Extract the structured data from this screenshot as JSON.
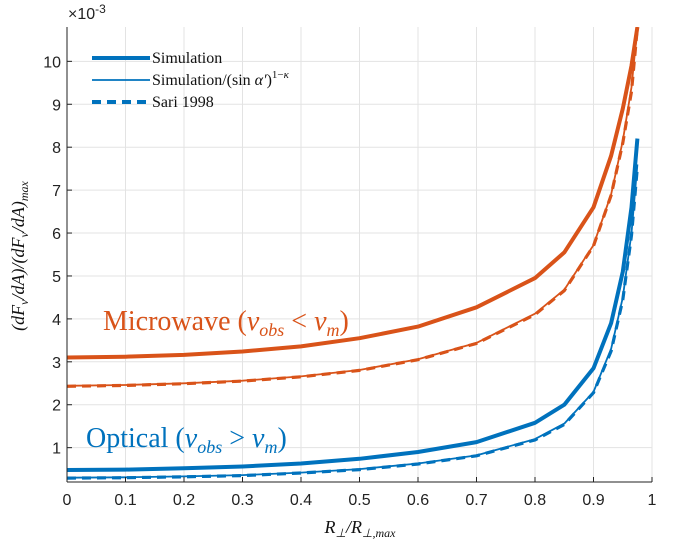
{
  "chart_data": {
    "type": "line",
    "title": "",
    "xlabel": "R⊥/R⊥,max",
    "ylabel": "(dFν/dA)/(dFν/dA)max",
    "y_multiplier": "×10-3",
    "xlim": [
      0,
      1
    ],
    "ylim": [
      0.2,
      10.8
    ],
    "xticks": [
      "0",
      "0.1",
      "0.2",
      "0.3",
      "0.4",
      "0.5",
      "0.6",
      "0.7",
      "0.8",
      "0.9",
      "1"
    ],
    "yticks": [
      "1",
      "2",
      "3",
      "4",
      "5",
      "6",
      "7",
      "8",
      "9",
      "10"
    ],
    "grid": true,
    "legend_position": "top-left",
    "legend": [
      {
        "label": "Simulation",
        "style": "thick-solid"
      },
      {
        "label": "Simulation/(sin α′)1−κ",
        "style": "thin-solid"
      },
      {
        "label": "Sari 1998",
        "style": "dashed"
      }
    ],
    "annotations": [
      {
        "text": "Microwave (νobs < νm)",
        "color": "#d95319"
      },
      {
        "text": "Optical (νobs > νm)",
        "color": "#0072bd"
      }
    ],
    "x": [
      0,
      0.1,
      0.2,
      0.3,
      0.4,
      0.5,
      0.6,
      0.7,
      0.8,
      0.85,
      0.9,
      0.93,
      0.95,
      0.965,
      0.975
    ],
    "series": [
      {
        "group": "Microwave",
        "style": "thick-solid",
        "color": "#d95319",
        "values": [
          3.1,
          3.12,
          3.16,
          3.24,
          3.36,
          3.55,
          3.82,
          4.27,
          4.95,
          5.55,
          6.6,
          7.8,
          8.9,
          9.9,
          10.8
        ]
      },
      {
        "group": "Microwave",
        "style": "thin-solid",
        "color": "#d95319",
        "values": [
          2.44,
          2.46,
          2.5,
          2.56,
          2.66,
          2.81,
          3.06,
          3.44,
          4.12,
          4.68,
          5.72,
          6.9,
          8.15,
          9.4,
          10.8
        ]
      },
      {
        "group": "Microwave",
        "style": "dashed",
        "color": "#d95319",
        "values": [
          2.43,
          2.45,
          2.49,
          2.55,
          2.65,
          2.8,
          3.05,
          3.43,
          4.1,
          4.66,
          5.7,
          6.88,
          8.1,
          9.3,
          10.8
        ]
      },
      {
        "group": "Optical",
        "style": "thick-solid",
        "color": "#0072bd",
        "values": [
          0.48,
          0.49,
          0.52,
          0.56,
          0.63,
          0.74,
          0.9,
          1.13,
          1.58,
          2.0,
          2.85,
          3.9,
          5.1,
          6.6,
          8.2
        ]
      },
      {
        "group": "Optical",
        "style": "thin-solid",
        "color": "#0072bd",
        "values": [
          0.3,
          0.31,
          0.33,
          0.36,
          0.42,
          0.5,
          0.63,
          0.82,
          1.2,
          1.56,
          2.3,
          3.3,
          4.5,
          6.0,
          7.6
        ]
      },
      {
        "group": "Optical",
        "style": "dashed",
        "color": "#0072bd",
        "values": [
          0.29,
          0.3,
          0.32,
          0.35,
          0.41,
          0.49,
          0.62,
          0.81,
          1.18,
          1.54,
          2.28,
          3.25,
          4.45,
          5.95,
          7.55
        ]
      }
    ]
  }
}
